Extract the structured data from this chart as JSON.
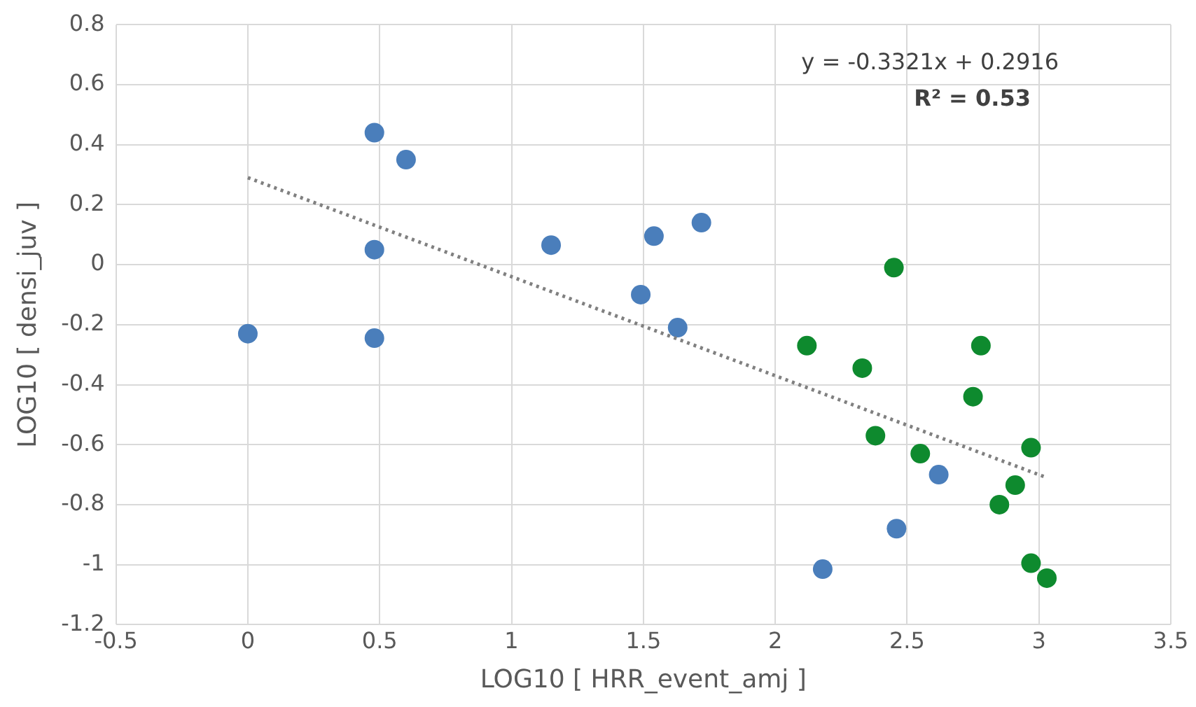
{
  "chart_data": {
    "type": "scatter",
    "xlabel": "LOG10 [ HRR_event_amj ]",
    "ylabel": "LOG10 [ densi_juv ]",
    "xlim": [
      -0.5,
      3.5
    ],
    "xticks": [
      -0.5,
      0,
      0.5,
      1,
      1.5,
      2,
      2.5,
      3,
      3.5
    ],
    "ylim": [
      -1.2,
      0.8
    ],
    "yticks": [
      -1.2,
      -1,
      -0.8,
      -0.6,
      -0.4,
      -0.2,
      0,
      0.2,
      0.4,
      0.6,
      0.8
    ],
    "grid": true,
    "legend": false,
    "marker": "circle",
    "annotations": [
      "y = -0.3321x + 0.2916",
      "R² = 0.53"
    ],
    "series": [
      {
        "type": "scatter",
        "color": "#4a7ebb",
        "x": [
          0,
          0.48,
          0.6,
          0.48,
          0.48,
          1.15,
          1.49,
          1.54,
          1.63,
          1.72,
          2.18,
          2.46,
          2.62
        ],
        "values": [
          -0.23,
          0.44,
          0.35,
          0.05,
          -0.245,
          0.065,
          -0.1,
          0.095,
          -0.21,
          0.14,
          -1.015,
          -0.88,
          -0.7
        ]
      },
      {
        "type": "scatter",
        "color": "#0e8a2e",
        "x": [
          2.12,
          2.33,
          2.38,
          2.45,
          2.55,
          2.75,
          2.78,
          2.97,
          2.91,
          2.85,
          2.97,
          3.03
        ],
        "values": [
          -0.27,
          -0.345,
          -0.57,
          -0.01,
          -0.63,
          -0.44,
          -0.27,
          -0.61,
          -0.735,
          -0.8,
          -0.995,
          -1.045
        ]
      },
      {
        "type": "line",
        "color": "#808080",
        "line_style": "dotted",
        "marker": "none",
        "x": [
          0,
          3.03
        ],
        "values": [
          0.29,
          -0.71
        ]
      }
    ]
  }
}
